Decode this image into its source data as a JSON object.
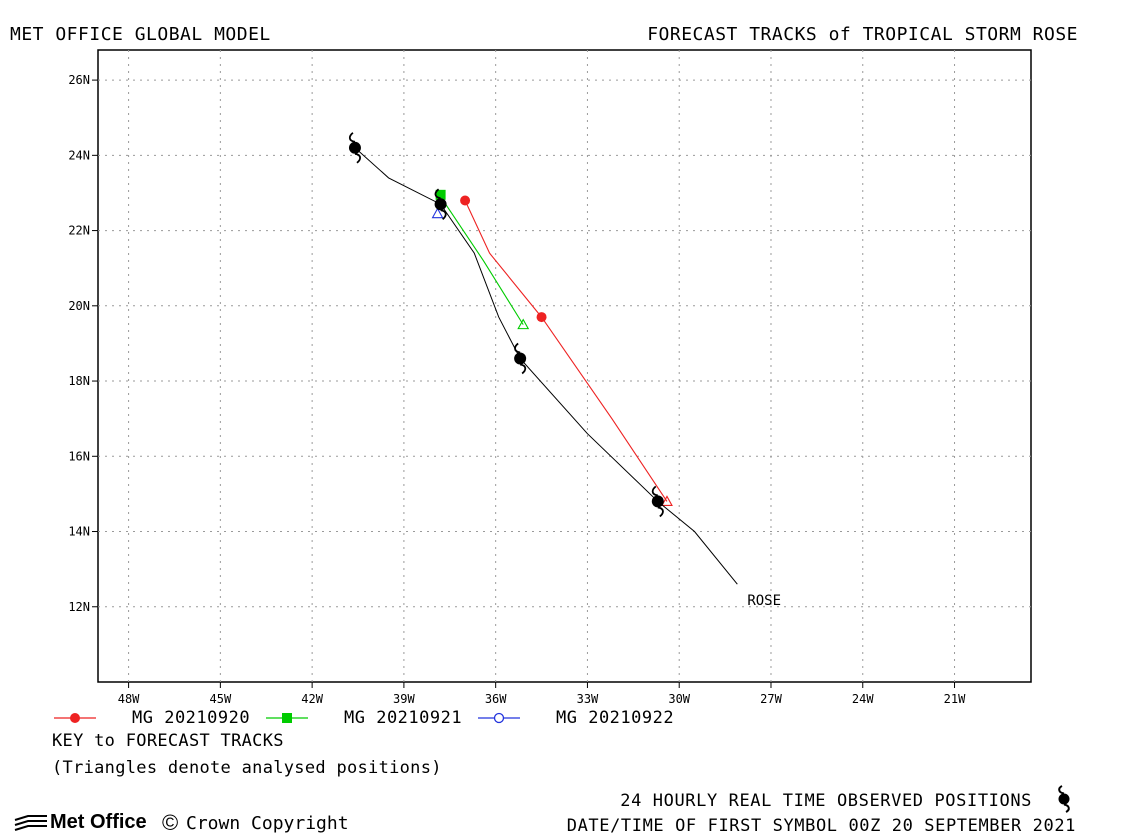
{
  "header": {
    "left_title": "MET OFFICE GLOBAL MODEL",
    "right_title": "FORECAST TRACKS of TROPICAL STORM ROSE"
  },
  "map": {
    "lon_range": [
      -49,
      -18.5
    ],
    "lat_range": [
      10,
      26.8
    ],
    "grid": true,
    "lon_ticks": [
      {
        "value": -48,
        "label": "48W"
      },
      {
        "value": -45,
        "label": "45W"
      },
      {
        "value": -42,
        "label": "42W"
      },
      {
        "value": -39,
        "label": "39W"
      },
      {
        "value": -36,
        "label": "36W"
      },
      {
        "value": -33,
        "label": "33W"
      },
      {
        "value": -30,
        "label": "30W"
      },
      {
        "value": -27,
        "label": "27W"
      },
      {
        "value": -24,
        "label": "24W"
      },
      {
        "value": -21,
        "label": "21W"
      }
    ],
    "lat_ticks": [
      {
        "value": 12,
        "label": "12N"
      },
      {
        "value": 14,
        "label": "14N"
      },
      {
        "value": 16,
        "label": "16N"
      },
      {
        "value": 18,
        "label": "18N"
      },
      {
        "value": 20,
        "label": "20N"
      },
      {
        "value": 22,
        "label": "22N"
      },
      {
        "value": 24,
        "label": "24N"
      },
      {
        "value": 26,
        "label": "26N"
      }
    ],
    "storm_label": "ROSE",
    "observed_track": {
      "color": "#000000",
      "points": [
        [
          -28.1,
          12.6
        ],
        [
          -29.5,
          14.0
        ],
        [
          -30.7,
          14.8
        ],
        [
          -33.0,
          16.6
        ],
        [
          -35.2,
          18.6
        ],
        [
          -35.9,
          19.7
        ],
        [
          -36.7,
          21.4
        ],
        [
          -37.8,
          22.7
        ],
        [
          -39.5,
          23.4
        ],
        [
          -40.6,
          24.2
        ]
      ],
      "symbols": [
        [
          -30.7,
          14.8
        ],
        [
          -35.2,
          18.6
        ],
        [
          -37.8,
          22.7
        ],
        [
          -40.6,
          24.2
        ]
      ]
    },
    "forecasts": [
      {
        "name": "MG 20210920",
        "color": "#ee2222",
        "marker": "circle",
        "points": [
          [
            -30.4,
            14.8
          ],
          [
            -32.2,
            17.0
          ],
          [
            -34.5,
            19.7
          ],
          [
            -36.2,
            21.4
          ],
          [
            -37.0,
            22.8
          ]
        ],
        "markers": [
          [
            -34.5,
            19.7
          ],
          [
            -37.0,
            22.8
          ]
        ],
        "analysed": [
          -30.4,
          14.8
        ]
      },
      {
        "name": "MG 20210921",
        "color": "#00cc00",
        "marker": "square",
        "points": [
          [
            -35.1,
            19.5
          ],
          [
            -36.4,
            21.2
          ],
          [
            -37.8,
            22.9
          ]
        ],
        "markers": [
          [
            -37.8,
            22.95
          ]
        ],
        "analysed": [
          -35.1,
          19.5
        ]
      },
      {
        "name": "MG 20210922",
        "color": "#2233dd",
        "marker": "open-circle",
        "points": [],
        "markers": [],
        "analysed": [
          -37.9,
          22.45
        ]
      }
    ]
  },
  "legend": {
    "items": [
      {
        "label": "MG 20210920",
        "color": "#ee2222",
        "marker": "circle"
      },
      {
        "label": "MG 20210921",
        "color": "#00cc00",
        "marker": "square"
      },
      {
        "label": "MG 20210922",
        "color": "#2233dd",
        "marker": "open-circle"
      }
    ]
  },
  "key": {
    "title": "KEY to FORECAST TRACKS",
    "note": "(Triangles denote analysed positions)"
  },
  "footer": {
    "observed_label": "24 HOURLY REAL TIME OBSERVED POSITIONS",
    "observed_icon": "hurricane-symbol-icon",
    "datetime_label": "DATE/TIME OF FIRST SYMBOL 00Z 20 SEPTEMBER 2021",
    "brand": "Met Office",
    "copyright": "Crown Copyright"
  }
}
